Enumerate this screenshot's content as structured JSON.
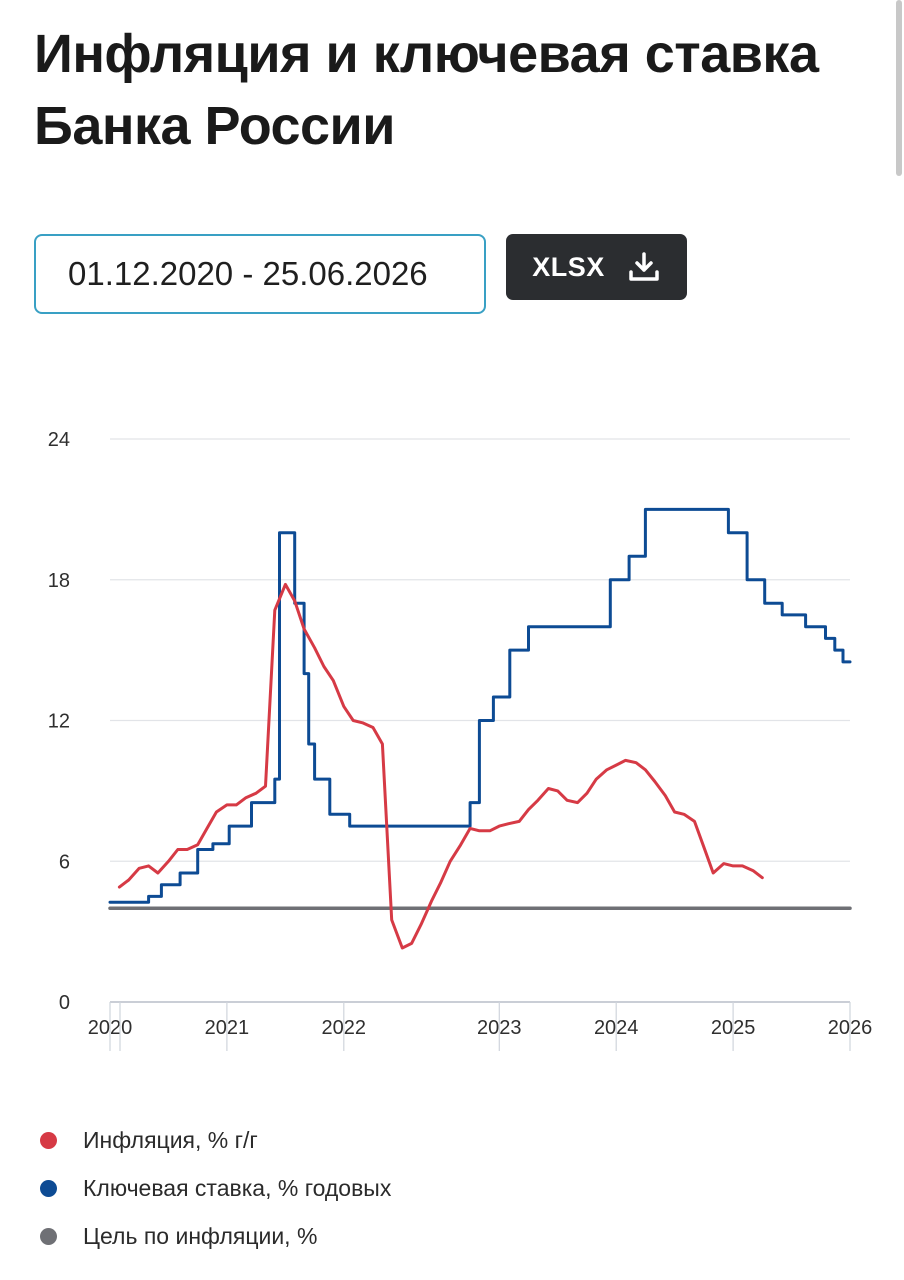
{
  "header": {
    "title": "Инфляция и ключевая ставка Банка России"
  },
  "controls": {
    "date_range": "01.12.2020 - 25.06.2026",
    "download_label": "XLSX",
    "download_icon": "download-icon"
  },
  "colors": {
    "inflation": "#d63a45",
    "key_rate": "#0d4b94",
    "target": "#6f7075"
  },
  "chart_data": {
    "type": "line",
    "title": "",
    "xlabel": "",
    "ylabel": "",
    "ylim": [
      0,
      24
    ],
    "yticks": [
      "0",
      "6",
      "12",
      "18",
      "24"
    ],
    "xticks": [
      {
        "t": 2020.92,
        "label": "2020"
      },
      {
        "t": 2021.92,
        "label": "2021"
      },
      {
        "t": 2022.92,
        "label": "2022"
      },
      {
        "t": 2024.25,
        "label": "2023"
      },
      {
        "t": 2025.25,
        "label": "2024"
      },
      {
        "t": 2026.25,
        "label": "2025"
      },
      {
        "t": 2027.25,
        "label": "2026"
      }
    ],
    "xlim": [
      2020.92,
      2027.25
    ],
    "grid": true,
    "legend_position": "bottom",
    "series": [
      {
        "key": "inflation",
        "name": "Инфляция, % г/г",
        "style": "line",
        "points": [
          [
            2021.0,
            4.9
          ],
          [
            2021.08,
            5.2
          ],
          [
            2021.17,
            5.7
          ],
          [
            2021.25,
            5.8
          ],
          [
            2021.33,
            5.5
          ],
          [
            2021.42,
            6.0
          ],
          [
            2021.5,
            6.5
          ],
          [
            2021.58,
            6.5
          ],
          [
            2021.67,
            6.7
          ],
          [
            2021.75,
            7.4
          ],
          [
            2021.83,
            8.1
          ],
          [
            2021.92,
            8.4
          ],
          [
            2022.0,
            8.4
          ],
          [
            2022.08,
            8.7
          ],
          [
            2022.17,
            8.9
          ],
          [
            2022.25,
            9.2
          ],
          [
            2022.33,
            16.7
          ],
          [
            2022.42,
            17.8
          ],
          [
            2022.5,
            17.1
          ],
          [
            2022.58,
            15.9
          ],
          [
            2022.67,
            15.1
          ],
          [
            2022.75,
            14.3
          ],
          [
            2022.83,
            13.7
          ],
          [
            2022.92,
            12.6
          ],
          [
            2023.0,
            12.0
          ],
          [
            2023.08,
            11.9
          ],
          [
            2023.17,
            11.7
          ],
          [
            2023.25,
            11.0
          ],
          [
            2023.33,
            3.5
          ],
          [
            2023.42,
            2.3
          ],
          [
            2023.5,
            2.5
          ],
          [
            2023.58,
            3.3
          ],
          [
            2023.67,
            4.3
          ],
          [
            2023.75,
            5.1
          ],
          [
            2023.83,
            6.0
          ],
          [
            2023.92,
            6.7
          ],
          [
            2024.0,
            7.4
          ],
          [
            2024.08,
            7.3
          ],
          [
            2024.17,
            7.3
          ],
          [
            2024.25,
            7.5
          ],
          [
            2024.33,
            7.6
          ],
          [
            2024.42,
            7.7
          ],
          [
            2024.5,
            8.2
          ],
          [
            2024.58,
            8.6
          ],
          [
            2024.67,
            9.1
          ],
          [
            2024.75,
            9.0
          ],
          [
            2024.83,
            8.6
          ],
          [
            2024.92,
            8.5
          ],
          [
            2025.0,
            8.9
          ],
          [
            2025.08,
            9.5
          ],
          [
            2025.17,
            9.9
          ],
          [
            2025.25,
            10.1
          ],
          [
            2025.33,
            10.3
          ],
          [
            2025.42,
            10.2
          ],
          [
            2025.5,
            9.9
          ],
          [
            2025.58,
            9.4
          ],
          [
            2025.67,
            8.8
          ],
          [
            2025.75,
            8.1
          ],
          [
            2025.83,
            8.0
          ],
          [
            2025.92,
            7.7
          ],
          [
            2026.0,
            6.6
          ],
          [
            2026.08,
            5.5
          ],
          [
            2026.17,
            5.9
          ],
          [
            2026.25,
            5.8
          ],
          [
            2026.33,
            5.8
          ],
          [
            2026.42,
            5.6
          ],
          [
            2026.5,
            5.3
          ]
        ]
      },
      {
        "key": "key_rate",
        "name": "Ключевая ставка, % годовых",
        "style": "step",
        "points": [
          [
            2020.92,
            4.25
          ],
          [
            2021.25,
            4.5
          ],
          [
            2021.36,
            5.0
          ],
          [
            2021.52,
            5.5
          ],
          [
            2021.67,
            6.5
          ],
          [
            2021.8,
            6.75
          ],
          [
            2021.94,
            7.5
          ],
          [
            2022.13,
            8.5
          ],
          [
            2022.33,
            9.5
          ],
          [
            2022.37,
            20.0
          ],
          [
            2022.5,
            17.0
          ],
          [
            2022.58,
            14.0
          ],
          [
            2022.62,
            11.0
          ],
          [
            2022.67,
            9.5
          ],
          [
            2022.8,
            8.0
          ],
          [
            2022.97,
            7.5
          ],
          [
            2024.0,
            8.5
          ],
          [
            2024.08,
            12.0
          ],
          [
            2024.2,
            13.0
          ],
          [
            2024.34,
            15.0
          ],
          [
            2024.5,
            16.0
          ],
          [
            2025.2,
            18.0
          ],
          [
            2025.36,
            19.0
          ],
          [
            2025.5,
            21.0
          ],
          [
            2026.21,
            20.0
          ],
          [
            2026.37,
            18.0
          ],
          [
            2026.52,
            17.0
          ],
          [
            2026.67,
            16.5
          ],
          [
            2026.87,
            16.0
          ],
          [
            2027.04,
            15.5
          ],
          [
            2027.12,
            15.0
          ],
          [
            2027.19,
            14.5
          ],
          [
            2027.25,
            14.5
          ]
        ]
      },
      {
        "key": "target",
        "name": "Цель по инфляции, %",
        "style": "line",
        "points": [
          [
            2020.92,
            4.0
          ],
          [
            2027.25,
            4.0
          ]
        ]
      }
    ]
  }
}
